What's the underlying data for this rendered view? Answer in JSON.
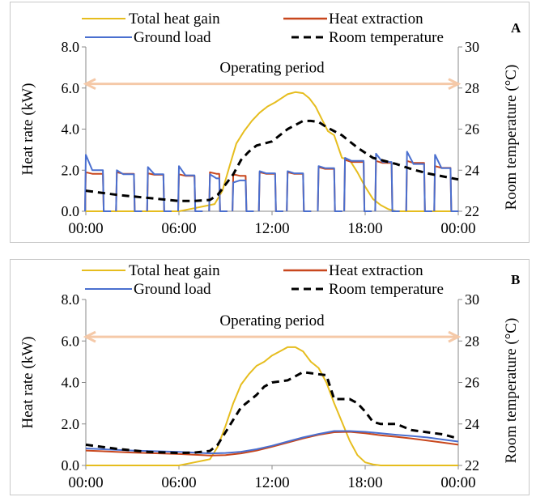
{
  "chart_data": [
    {
      "panel_label": "A",
      "type": "line",
      "legend": {
        "total_heat_gain": "Total heat gain",
        "heat_extraction": "Heat extraction",
        "ground_load": "Ground load",
        "room_temperature": "Room temperature"
      },
      "ylabel": "Heat rate (kW)",
      "y2label": "Room temperature (°C)",
      "annotation": "Operating period",
      "x_ticks": [
        "00:00",
        "06:00",
        "12:00",
        "18:00",
        "00:00"
      ],
      "y_ticks": [
        "0.0",
        "2.0",
        "4.0",
        "6.0",
        "8.0"
      ],
      "y2_ticks": [
        "22",
        "24",
        "26",
        "28",
        "30"
      ],
      "xlim": [
        0,
        24
      ],
      "ylim": [
        0,
        8
      ],
      "y2lim": [
        22,
        30
      ],
      "colors": {
        "total_heat_gain": "#e6bd1e",
        "heat_extraction": "#c8471d",
        "ground_load": "#4a6fcf",
        "room_temperature": "#000000",
        "operating_period": "#f5c9a8"
      },
      "operating_period": [
        0,
        24
      ],
      "series": [
        {
          "key": "total_heat_gain",
          "axis": "left",
          "x": [
            0,
            6,
            7,
            8.3,
            8.8,
            9.3,
            9.7,
            10.2,
            10.7,
            11.2,
            11.7,
            12.2,
            12.6,
            13.0,
            13.5,
            14.0,
            14.4,
            14.8,
            15.2,
            15.6,
            16.0,
            16.5,
            17.0,
            17.5,
            18.0,
            18.5,
            19.0,
            19.5,
            20.0,
            24
          ],
          "y": [
            0,
            0,
            0.15,
            0.35,
            1.0,
            2.3,
            3.3,
            3.9,
            4.4,
            4.8,
            5.1,
            5.3,
            5.5,
            5.7,
            5.8,
            5.75,
            5.5,
            5.1,
            4.5,
            3.9,
            3.7,
            2.6,
            2.5,
            1.9,
            1.2,
            0.6,
            0.3,
            0.1,
            0,
            0
          ]
        },
        {
          "key": "heat_extraction",
          "axis": "left",
          "pulses": [
            [
              0,
              1.1,
              1.9
            ],
            [
              2.0,
              3.1,
              1.9
            ],
            [
              4.0,
              5.0,
              1.85
            ],
            [
              6.0,
              7.0,
              1.8
            ],
            [
              8.0,
              8.6,
              1.9
            ],
            [
              9.5,
              10.3,
              1.8
            ],
            [
              11.2,
              12.2,
              1.9
            ],
            [
              13.0,
              14.0,
              1.9
            ],
            [
              15.0,
              16.0,
              2.15
            ],
            [
              16.7,
              17.9,
              2.5
            ],
            [
              18.7,
              19.7,
              2.45
            ],
            [
              20.7,
              21.8,
              2.45
            ],
            [
              22.5,
              23.5,
              2.2
            ]
          ]
        },
        {
          "key": "ground_load",
          "axis": "left",
          "pulses": [
            [
              0,
              1.1,
              2.75,
              2.0
            ],
            [
              2.0,
              3.1,
              2.0,
              1.8
            ],
            [
              4.0,
              5.0,
              2.15,
              1.8
            ],
            [
              6.0,
              7.0,
              2.2,
              1.75
            ],
            [
              8.0,
              8.6,
              1.8,
              1.6
            ],
            [
              9.5,
              10.3,
              1.4,
              1.5
            ],
            [
              11.2,
              12.2,
              1.95,
              1.85
            ],
            [
              13.0,
              14.0,
              1.95,
              1.85
            ],
            [
              15.0,
              16.0,
              2.2,
              2.1
            ],
            [
              16.7,
              17.9,
              2.6,
              2.45
            ],
            [
              18.7,
              19.7,
              2.8,
              2.4
            ],
            [
              20.7,
              21.8,
              2.9,
              2.3
            ],
            [
              22.5,
              23.5,
              2.75,
              2.1
            ]
          ]
        },
        {
          "key": "room_temperature",
          "axis": "right",
          "x": [
            0,
            2,
            4,
            6,
            7,
            8,
            8.5,
            9,
            9.5,
            10,
            10.5,
            11,
            11.5,
            12,
            12.5,
            13,
            13.5,
            14,
            14.5,
            15,
            15.5,
            16,
            16.5,
            17,
            17.5,
            18,
            18.5,
            19,
            20,
            21,
            22,
            23,
            24
          ],
          "y": [
            23.0,
            22.8,
            22.65,
            22.5,
            22.5,
            22.55,
            22.8,
            23.3,
            23.8,
            24.5,
            24.9,
            25.2,
            25.3,
            25.4,
            25.7,
            26.0,
            26.2,
            26.4,
            26.4,
            26.35,
            26.1,
            25.9,
            25.7,
            25.4,
            25.1,
            24.85,
            24.6,
            24.5,
            24.3,
            24.05,
            23.85,
            23.7,
            23.55
          ]
        }
      ]
    },
    {
      "panel_label": "B",
      "type": "line",
      "legend": {
        "total_heat_gain": "Total heat gain",
        "heat_extraction": "Heat extraction",
        "ground_load": "Ground load",
        "room_temperature": "Room temperature"
      },
      "ylabel": "Heat rate (kW)",
      "y2label": "Room temperature (°C)",
      "annotation": "Operating period",
      "x_ticks": [
        "00:00",
        "06:00",
        "12:00",
        "18:00",
        "00:00"
      ],
      "y_ticks": [
        "0.0",
        "2.0",
        "4.0",
        "6.0",
        "8.0"
      ],
      "y2_ticks": [
        "22",
        "24",
        "26",
        "28",
        "30"
      ],
      "xlim": [
        0,
        24
      ],
      "ylim": [
        0,
        8
      ],
      "y2lim": [
        22,
        30
      ],
      "colors": {
        "total_heat_gain": "#e6bd1e",
        "heat_extraction": "#c8471d",
        "ground_load": "#4a6fcf",
        "room_temperature": "#000000",
        "operating_period": "#f5c9a8"
      },
      "operating_period": [
        0,
        24
      ],
      "series": [
        {
          "key": "total_heat_gain",
          "axis": "left",
          "x": [
            0,
            6,
            7,
            8,
            8.5,
            9,
            9.5,
            10,
            10.5,
            11,
            11.5,
            12,
            12.5,
            13,
            13.5,
            14,
            14.5,
            15,
            15.5,
            16,
            16.5,
            17,
            17.5,
            18,
            18.5,
            19,
            24
          ],
          "y": [
            0,
            0,
            0.15,
            0.3,
            0.9,
            1.9,
            3.0,
            3.9,
            4.4,
            4.8,
            5.0,
            5.3,
            5.5,
            5.7,
            5.7,
            5.5,
            5.0,
            4.7,
            4.0,
            3.0,
            2.1,
            1.2,
            0.5,
            0.15,
            0.05,
            0,
            0
          ]
        },
        {
          "key": "heat_extraction",
          "axis": "left",
          "x": [
            0,
            3,
            6,
            8,
            9,
            10,
            11,
            12,
            13,
            14,
            15,
            16,
            17,
            18,
            19,
            20,
            21,
            22,
            23,
            24
          ],
          "y": [
            0.72,
            0.62,
            0.55,
            0.48,
            0.5,
            0.58,
            0.72,
            0.9,
            1.1,
            1.3,
            1.48,
            1.6,
            1.62,
            1.55,
            1.45,
            1.38,
            1.3,
            1.2,
            1.1,
            1.0
          ]
        },
        {
          "key": "ground_load",
          "axis": "left",
          "x": [
            0,
            3,
            6,
            8,
            9,
            10,
            11,
            12,
            13,
            14,
            15,
            16,
            17,
            18,
            19,
            20,
            21,
            22,
            23,
            24
          ],
          "y": [
            0.82,
            0.72,
            0.65,
            0.58,
            0.6,
            0.66,
            0.78,
            0.95,
            1.15,
            1.35,
            1.52,
            1.66,
            1.66,
            1.62,
            1.55,
            1.48,
            1.42,
            1.35,
            1.25,
            1.15
          ]
        },
        {
          "key": "room_temperature",
          "axis": "right",
          "x": [
            0,
            2,
            4,
            6,
            7,
            8,
            8.5,
            9,
            9.5,
            10,
            10.5,
            11,
            11.5,
            12,
            12.5,
            13,
            13.5,
            14,
            14.5,
            15,
            15.5,
            16,
            16.5,
            17,
            17.5,
            18,
            18.5,
            19,
            20,
            21,
            22,
            23,
            24
          ],
          "y": [
            23.0,
            22.8,
            22.65,
            22.6,
            22.62,
            22.7,
            23.0,
            23.6,
            24.2,
            24.8,
            25.1,
            25.4,
            25.8,
            26.0,
            26.05,
            26.1,
            26.3,
            26.5,
            26.45,
            26.4,
            26.35,
            25.2,
            25.2,
            25.2,
            25.0,
            24.6,
            24.1,
            24.0,
            24.0,
            23.7,
            23.6,
            23.5,
            23.3
          ]
        }
      ]
    }
  ]
}
